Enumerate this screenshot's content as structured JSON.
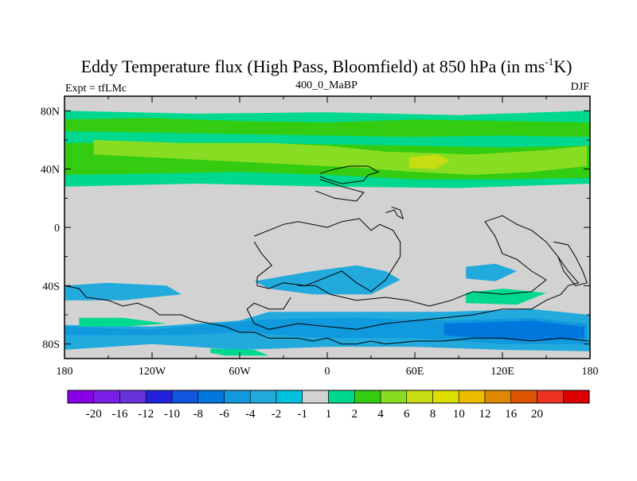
{
  "chart_data": {
    "type": "heatmap",
    "title_main": "Eddy Temperature flux (High Pass, Bloomfield) at 850 hPa (in ms",
    "title_sup": "-1",
    "title_end": "K)",
    "subtitle_left": "Expt = tfLMc",
    "subtitle_center": "400_0_MaBP",
    "subtitle_right": "DJF",
    "x_ticks": [
      {
        "value": -180,
        "label": "180"
      },
      {
        "value": -120,
        "label": "120W"
      },
      {
        "value": -60,
        "label": "60W"
      },
      {
        "value": 0,
        "label": "0"
      },
      {
        "value": 60,
        "label": "60E"
      },
      {
        "value": 120,
        "label": "120E"
      },
      {
        "value": 180,
        "label": "180"
      }
    ],
    "y_ticks": [
      {
        "value": 80,
        "label": "80N"
      },
      {
        "value": 40,
        "label": "40N"
      },
      {
        "value": 0,
        "label": "0"
      },
      {
        "value": -40,
        "label": "40S"
      },
      {
        "value": -80,
        "label": "80S"
      }
    ],
    "xlim": [
      -180,
      180
    ],
    "ylim": [
      -90,
      90
    ],
    "colorbar": {
      "colors": [
        "#8a00e6",
        "#7a1fe6",
        "#6633dd",
        "#2222dd",
        "#1155dd",
        "#0077dd",
        "#1199dd",
        "#22aadd",
        "#00c0e0",
        "#d2d2d2",
        "#00d890",
        "#33cc11",
        "#88dd22",
        "#c8dd11",
        "#dddd00",
        "#eebb00",
        "#dd8800",
        "#dd5500",
        "#ee3322",
        "#dd0000"
      ],
      "labels": [
        "-20",
        "-16",
        "-12",
        "-10",
        "-8",
        "-6",
        "-4",
        "-2",
        "-1",
        "1",
        "2",
        "4",
        "6",
        "8",
        "10",
        "12",
        "16",
        "20"
      ]
    },
    "regions": [
      {
        "level": 2,
        "color": "#00d890",
        "points": [
          [
            -180,
            80
          ],
          [
            -90,
            78
          ],
          [
            0,
            79
          ],
          [
            90,
            77
          ],
          [
            180,
            80
          ],
          [
            180,
            30
          ],
          [
            90,
            27
          ],
          [
            0,
            28
          ],
          [
            -90,
            30
          ],
          [
            -180,
            28
          ]
        ]
      },
      {
        "level": 4,
        "color": "#33cc11",
        "points": [
          [
            -180,
            74
          ],
          [
            -120,
            75
          ],
          [
            -60,
            73
          ],
          [
            0,
            72
          ],
          [
            60,
            74
          ],
          [
            120,
            73
          ],
          [
            180,
            72
          ],
          [
            180,
            34
          ],
          [
            120,
            33
          ],
          [
            60,
            33
          ],
          [
            0,
            36
          ],
          [
            -60,
            38
          ],
          [
            -120,
            37
          ],
          [
            -180,
            36
          ]
        ]
      },
      {
        "level": 2,
        "color": "#00d890",
        "points": [
          [
            -180,
            66
          ],
          [
            -120,
            65
          ],
          [
            -60,
            64
          ],
          [
            0,
            63
          ],
          [
            60,
            62
          ],
          [
            120,
            63
          ],
          [
            180,
            62
          ],
          [
            180,
            56
          ],
          [
            120,
            55
          ],
          [
            60,
            56
          ],
          [
            0,
            57
          ],
          [
            -60,
            58
          ],
          [
            -120,
            58
          ],
          [
            -180,
            58
          ]
        ]
      },
      {
        "level": 6,
        "color": "#88dd22",
        "points": [
          [
            -160,
            60
          ],
          [
            -100,
            58
          ],
          [
            -40,
            58
          ],
          [
            0,
            56
          ],
          [
            40,
            52
          ],
          [
            100,
            50
          ],
          [
            150,
            53
          ],
          [
            178,
            56
          ],
          [
            178,
            42
          ],
          [
            140,
            38
          ],
          [
            100,
            36
          ],
          [
            60,
            38
          ],
          [
            20,
            41
          ],
          [
            -40,
            44
          ],
          [
            -100,
            47
          ],
          [
            -160,
            50
          ]
        ]
      },
      {
        "level": 8,
        "color": "#c8dd11",
        "points": [
          [
            56,
            48
          ],
          [
            75,
            50
          ],
          [
            84,
            46
          ],
          [
            74,
            40
          ],
          [
            56,
            41
          ]
        ]
      },
      {
        "level": -2,
        "color": "#22aadd",
        "points": [
          [
            -180,
            -40
          ],
          [
            -150,
            -38
          ],
          [
            -110,
            -40
          ],
          [
            -100,
            -46
          ],
          [
            -140,
            -50
          ],
          [
            -180,
            -50
          ]
        ]
      },
      {
        "level": -2,
        "color": "#22aadd",
        "points": [
          [
            -50,
            -37
          ],
          [
            -10,
            -30
          ],
          [
            20,
            -26
          ],
          [
            40,
            -30
          ],
          [
            50,
            -36
          ],
          [
            30,
            -46
          ],
          [
            -10,
            -46
          ],
          [
            -40,
            -42
          ]
        ]
      },
      {
        "level": -2,
        "color": "#22aadd",
        "points": [
          [
            95,
            -27
          ],
          [
            115,
            -25
          ],
          [
            130,
            -30
          ],
          [
            115,
            -37
          ],
          [
            95,
            -35
          ]
        ]
      },
      {
        "level": -2,
        "color": "#22aadd",
        "points": [
          [
            -180,
            -67
          ],
          [
            -120,
            -68
          ],
          [
            -60,
            -64
          ],
          [
            -40,
            -58
          ],
          [
            20,
            -58
          ],
          [
            80,
            -58
          ],
          [
            140,
            -56
          ],
          [
            180,
            -60
          ],
          [
            180,
            -85
          ],
          [
            120,
            -84
          ],
          [
            60,
            -82
          ],
          [
            0,
            -82
          ],
          [
            -60,
            -84
          ],
          [
            -120,
            -80
          ],
          [
            -180,
            -84
          ]
        ]
      },
      {
        "level": -4,
        "color": "#1199dd",
        "points": [
          [
            -40,
            -63
          ],
          [
            20,
            -62
          ],
          [
            80,
            -64
          ],
          [
            140,
            -62
          ],
          [
            178,
            -66
          ],
          [
            178,
            -80
          ],
          [
            120,
            -80
          ],
          [
            60,
            -76
          ],
          [
            0,
            -76
          ],
          [
            -60,
            -72
          ],
          [
            -100,
            -74
          ],
          [
            -180,
            -74
          ],
          [
            -180,
            -68
          ],
          [
            -120,
            -70
          ]
        ]
      },
      {
        "level": -6,
        "color": "#0077dd",
        "points": [
          [
            80,
            -66
          ],
          [
            140,
            -64
          ],
          [
            176,
            -68
          ],
          [
            176,
            -76
          ],
          [
            140,
            -78
          ],
          [
            80,
            -74
          ]
        ]
      },
      {
        "level": 2,
        "color": "#00d890",
        "points": [
          [
            -170,
            -62
          ],
          [
            -140,
            -62
          ],
          [
            -110,
            -66
          ],
          [
            -140,
            -68
          ],
          [
            -170,
            -68
          ]
        ]
      },
      {
        "level": 2,
        "color": "#00d890",
        "points": [
          [
            -80,
            -83
          ],
          [
            -50,
            -84
          ],
          [
            -40,
            -88
          ],
          [
            -70,
            -88
          ],
          [
            -80,
            -86
          ]
        ]
      },
      {
        "level": 2,
        "color": "#00d890",
        "points": [
          [
            95,
            -45
          ],
          [
            120,
            -42
          ],
          [
            150,
            -45
          ],
          [
            130,
            -53
          ],
          [
            95,
            -52
          ]
        ]
      }
    ],
    "land_outlines": [
      [
        [
          -5,
          37
        ],
        [
          5,
          40
        ],
        [
          15,
          42
        ],
        [
          28,
          42
        ],
        [
          35,
          38
        ],
        [
          28,
          36
        ],
        [
          25,
          32
        ],
        [
          10,
          30
        ],
        [
          0,
          33
        ],
        [
          -5,
          35
        ]
      ],
      [
        [
          -5,
          33
        ],
        [
          10,
          28
        ],
        [
          25,
          24
        ],
        [
          20,
          18
        ],
        [
          5,
          20
        ],
        [
          -8,
          25
        ]
      ],
      [
        [
          -50,
          -6
        ],
        [
          -40,
          -2
        ],
        [
          -30,
          2
        ],
        [
          -20,
          4
        ],
        [
          0,
          0
        ],
        [
          10,
          4
        ],
        [
          22,
          6
        ],
        [
          30,
          -2
        ],
        [
          36,
          2
        ],
        [
          45,
          -2
        ],
        [
          50,
          -10
        ],
        [
          50,
          -20
        ],
        [
          45,
          -28
        ],
        [
          40,
          -36
        ],
        [
          30,
          -44
        ],
        [
          20,
          -38
        ],
        [
          10,
          -30
        ],
        [
          0,
          -34
        ],
        [
          -15,
          -40
        ],
        [
          -30,
          -38
        ],
        [
          -40,
          -42
        ],
        [
          -48,
          -40
        ],
        [
          -48,
          -34
        ],
        [
          -38,
          -26
        ],
        [
          -45,
          -18
        ],
        [
          -50,
          -10
        ]
      ],
      [
        [
          -20,
          -40
        ],
        [
          -8,
          -40
        ],
        [
          2,
          -46
        ],
        [
          20,
          -50
        ],
        [
          40,
          -48
        ],
        [
          55,
          -50
        ],
        [
          70,
          -54
        ],
        [
          85,
          -50
        ],
        [
          100,
          -44
        ],
        [
          120,
          -46
        ],
        [
          140,
          -44
        ],
        [
          150,
          -36
        ],
        [
          140,
          -30
        ],
        [
          130,
          -22
        ],
        [
          120,
          -18
        ],
        [
          115,
          -6
        ],
        [
          108,
          4
        ],
        [
          120,
          8
        ],
        [
          130,
          2
        ],
        [
          140,
          -2
        ],
        [
          150,
          -10
        ],
        [
          158,
          -20
        ],
        [
          165,
          -30
        ],
        [
          172,
          -38
        ],
        [
          165,
          -40
        ],
        [
          160,
          -46
        ],
        [
          150,
          -50
        ],
        [
          140,
          -56
        ],
        [
          120,
          -56
        ],
        [
          100,
          -60
        ],
        [
          80,
          -62
        ],
        [
          60,
          -64
        ],
        [
          40,
          -66
        ],
        [
          20,
          -70
        ],
        [
          0,
          -68
        ],
        [
          -20,
          -66
        ],
        [
          -40,
          -70
        ],
        [
          -50,
          -66
        ],
        [
          -55,
          -56
        ],
        [
          -50,
          -52
        ],
        [
          -40,
          -56
        ],
        [
          -30,
          -56
        ],
        [
          -25,
          -48
        ]
      ],
      [
        [
          -180,
          -40
        ],
        [
          -170,
          -42
        ],
        [
          -165,
          -48
        ],
        [
          -150,
          -50
        ],
        [
          -140,
          -54
        ],
        [
          -130,
          -52
        ],
        [
          -120,
          -56
        ],
        [
          -115,
          -60
        ],
        [
          -100,
          -60
        ],
        [
          -90,
          -64
        ],
        [
          -70,
          -68
        ],
        [
          -60,
          -72
        ],
        [
          -50,
          -72
        ],
        [
          -40,
          -76
        ],
        [
          -30,
          -76
        ],
        [
          -20,
          -76
        ],
        [
          -10,
          -78
        ],
        [
          0,
          -76
        ],
        [
          10,
          -80
        ],
        [
          20,
          -80
        ],
        [
          30,
          -78
        ],
        [
          40,
          -80
        ],
        [
          60,
          -78
        ],
        [
          80,
          -78
        ],
        [
          100,
          -76
        ],
        [
          120,
          -76
        ],
        [
          140,
          -78
        ],
        [
          160,
          -76
        ],
        [
          180,
          -78
        ]
      ],
      [
        [
          40,
          10
        ],
        [
          46,
          12
        ],
        [
          48,
          8
        ],
        [
          52,
          6
        ],
        [
          50,
          12
        ],
        [
          44,
          14
        ]
      ],
      [
        [
          155,
          -10
        ],
        [
          165,
          -12
        ],
        [
          170,
          -20
        ],
        [
          175,
          -30
        ],
        [
          178,
          -38
        ],
        [
          170,
          -40
        ],
        [
          162,
          -30
        ],
        [
          158,
          -20
        ]
      ]
    ]
  }
}
